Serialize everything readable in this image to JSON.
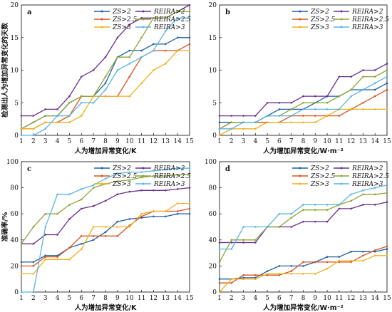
{
  "colors": {
    "ZS2": "#1f5fa6",
    "REIRA2": "#6a2d8f",
    "ZS25": "#d9531e",
    "REIRA25": "#8ca637",
    "ZS3": "#f0b01e",
    "REIRA3": "#5ab4e5"
  },
  "chart_data": [
    {
      "type": "line",
      "panel_label": "a",
      "xlabel": "人为增加异常变化/K",
      "ylabel": "检测出人为增加异常变化的天数",
      "xlim": [
        1,
        15
      ],
      "ylim": [
        0,
        20
      ],
      "xticks": [
        "1",
        "2",
        "3",
        "4",
        "5",
        "6",
        "7",
        "8",
        "9",
        "10",
        "11",
        "12",
        "13",
        "14",
        "15"
      ],
      "yticks": [
        "0",
        "5",
        "10",
        "15",
        "20"
      ],
      "legend_position": "top-center",
      "x": [
        1,
        2,
        3,
        4,
        5,
        6,
        7,
        8,
        9,
        10,
        11,
        12,
        13,
        14,
        15
      ],
      "series": [
        {
          "name": "ZS>2",
          "color_key": "ZS2",
          "values": [
            1,
            2,
            3,
            3,
            5,
            6,
            6,
            8,
            12,
            13,
            13,
            14,
            14,
            15,
            15
          ]
        },
        {
          "name": "REIRA>2",
          "color_key": "REIRA2",
          "values": [
            3,
            3,
            4,
            4,
            6,
            9,
            10,
            12,
            15,
            17,
            18,
            18,
            18,
            19,
            20
          ]
        },
        {
          "name": "ZS>2.5",
          "color_key": "ZS25",
          "values": [
            1,
            1,
            2,
            2,
            3,
            6,
            6,
            6,
            6,
            9,
            12,
            13,
            13,
            13,
            14
          ]
        },
        {
          "name": "REIRA>2.5",
          "color_key": "REIRA25",
          "values": [
            1,
            2,
            3,
            3,
            5,
            6,
            6,
            9,
            12,
            12,
            15,
            18,
            18,
            19,
            19
          ]
        },
        {
          "name": "ZS>3",
          "color_key": "ZS3",
          "values": [
            1,
            1,
            2,
            2,
            2,
            3,
            6,
            6,
            6,
            6,
            8,
            10,
            11,
            13,
            13
          ]
        },
        {
          "name": "REIRA>3",
          "color_key": "REIRA3",
          "values": [
            0,
            0,
            1,
            3,
            3,
            5,
            5,
            7,
            10,
            11,
            12,
            13,
            16,
            18,
            18
          ]
        }
      ]
    },
    {
      "type": "line",
      "panel_label": "b",
      "xlabel": "人为增加异常变化/W·m⁻²",
      "ylabel": "",
      "xlim": [
        1,
        15
      ],
      "ylim": [
        0,
        20
      ],
      "xticks": [
        "1",
        "2",
        "3",
        "4",
        "5",
        "6",
        "7",
        "8",
        "9",
        "10",
        "11",
        "12",
        "13",
        "14",
        "15"
      ],
      "yticks": [
        "0",
        "5",
        "10",
        "15",
        "20"
      ],
      "legend_position": "top-center",
      "x": [
        1,
        2,
        3,
        4,
        5,
        6,
        7,
        8,
        9,
        10,
        11,
        12,
        13,
        14,
        15
      ],
      "series": [
        {
          "name": "ZS>2",
          "color_key": "ZS2",
          "values": [
            2,
            2,
            2,
            2,
            3,
            4,
            4,
            4,
            5,
            6,
            6,
            7,
            7,
            7,
            8
          ]
        },
        {
          "name": "REIRA>2",
          "color_key": "REIRA2",
          "values": [
            3,
            3,
            3,
            3,
            5,
            5,
            5,
            6,
            6,
            6,
            9,
            9,
            10,
            10,
            11
          ]
        },
        {
          "name": "ZS>2.5",
          "color_key": "ZS25",
          "values": [
            1,
            2,
            2,
            2,
            2,
            2,
            3,
            3,
            3,
            3,
            3,
            4,
            5,
            6,
            7
          ]
        },
        {
          "name": "REIRA>2.5",
          "color_key": "REIRA25",
          "values": [
            1,
            2,
            2,
            2,
            3,
            3,
            4,
            5,
            5,
            5,
            6,
            7,
            9,
            9,
            10
          ]
        },
        {
          "name": "ZS>3",
          "color_key": "ZS3",
          "values": [
            0,
            1,
            1,
            1,
            2,
            2,
            2,
            2,
            2,
            3,
            4,
            4,
            4,
            4,
            4
          ]
        },
        {
          "name": "REIRA>3",
          "color_key": "REIRA3",
          "values": [
            1,
            1,
            2,
            2,
            3,
            3,
            3,
            4,
            4,
            4,
            4,
            6,
            7,
            8,
            9
          ]
        }
      ]
    },
    {
      "type": "line",
      "panel_label": "c",
      "xlabel": "人为增加异常变化/K",
      "ylabel": "准确率/%",
      "xlim": [
        1,
        15
      ],
      "ylim": [
        0,
        100
      ],
      "xticks": [
        "1",
        "2",
        "3",
        "4",
        "5",
        "6",
        "7",
        "8",
        "9",
        "10",
        "11",
        "12",
        "13",
        "14",
        "15"
      ],
      "yticks": [
        "0",
        "20",
        "40",
        "60",
        "80",
        "100"
      ],
      "legend_position": "top-center",
      "x": [
        1,
        2,
        3,
        4,
        5,
        6,
        7,
        8,
        9,
        10,
        11,
        12,
        13,
        14,
        15
      ],
      "series": [
        {
          "name": "ZS>2",
          "color_key": "ZS2",
          "values": [
            23,
            23,
            28,
            28,
            34,
            37,
            40,
            46,
            54,
            56,
            57,
            58,
            58,
            60,
            60
          ]
        },
        {
          "name": "REIRA>2",
          "color_key": "REIRA2",
          "values": [
            37,
            37,
            44,
            44,
            56,
            64,
            66,
            70,
            75,
            77,
            78,
            78,
            78,
            79,
            80
          ]
        },
        {
          "name": "ZS>2.5",
          "color_key": "ZS25",
          "values": [
            20,
            20,
            27,
            27,
            34,
            43,
            43,
            43,
            43,
            51,
            58,
            62,
            62,
            62,
            64
          ]
        },
        {
          "name": "REIRA>2.5",
          "color_key": "REIRA25",
          "values": [
            37,
            50,
            60,
            60,
            67,
            71,
            80,
            83,
            85,
            86,
            88,
            89,
            89,
            90,
            90
          ]
        },
        {
          "name": "ZS>3",
          "color_key": "ZS3",
          "values": [
            14,
            14,
            25,
            25,
            25,
            33,
            50,
            50,
            50,
            50,
            60,
            62,
            62,
            68,
            68
          ]
        },
        {
          "name": "REIRA>3",
          "color_key": "REIRA3",
          "values": [
            0,
            0,
            50,
            75,
            75,
            79,
            82,
            87,
            91,
            92,
            92,
            93,
            94,
            95,
            95
          ]
        }
      ]
    },
    {
      "type": "line",
      "panel_label": "d",
      "xlabel": "人为增加异常变化/W·m⁻²",
      "ylabel": "",
      "xlim": [
        1,
        15
      ],
      "ylim": [
        0,
        100
      ],
      "xticks": [
        "1",
        "2",
        "3",
        "4",
        "5",
        "6",
        "7",
        "8",
        "9",
        "10",
        "11",
        "12",
        "13",
        "14",
        "15"
      ],
      "yticks": [
        "0",
        "20",
        "40",
        "60",
        "80",
        "100"
      ],
      "legend_position": "top-center",
      "x": [
        1,
        2,
        3,
        4,
        5,
        6,
        7,
        8,
        9,
        10,
        11,
        12,
        13,
        14,
        15
      ],
      "series": [
        {
          "name": "ZS>2",
          "color_key": "ZS2",
          "values": [
            10,
            10,
            11,
            11,
            16,
            20,
            20,
            20,
            23,
            27,
            27,
            31,
            31,
            31,
            33
          ]
        },
        {
          "name": "REIRA>2",
          "color_key": "REIRA2",
          "values": [
            38,
            38,
            38,
            38,
            50,
            50,
            50,
            54,
            54,
            54,
            64,
            64,
            67,
            67,
            69
          ]
        },
        {
          "name": "ZS>2.5",
          "color_key": "ZS25",
          "values": [
            7,
            7,
            13,
            13,
            13,
            13,
            16,
            23,
            23,
            23,
            23,
            23,
            28,
            32,
            35
          ]
        },
        {
          "name": "REIRA>2.5",
          "color_key": "REIRA25",
          "values": [
            23,
            40,
            40,
            40,
            50,
            50,
            57,
            63,
            63,
            63,
            67,
            70,
            75,
            75,
            76
          ]
        },
        {
          "name": "ZS>3",
          "color_key": "ZS3",
          "values": [
            0,
            10,
            10,
            10,
            14,
            14,
            14,
            14,
            14,
            18,
            24,
            24,
            24,
            28,
            28
          ]
        },
        {
          "name": "REIRA>3",
          "color_key": "REIRA3",
          "values": [
            33,
            33,
            50,
            50,
            50,
            60,
            60,
            67,
            67,
            67,
            67,
            75,
            78,
            80,
            82
          ]
        }
      ]
    }
  ]
}
